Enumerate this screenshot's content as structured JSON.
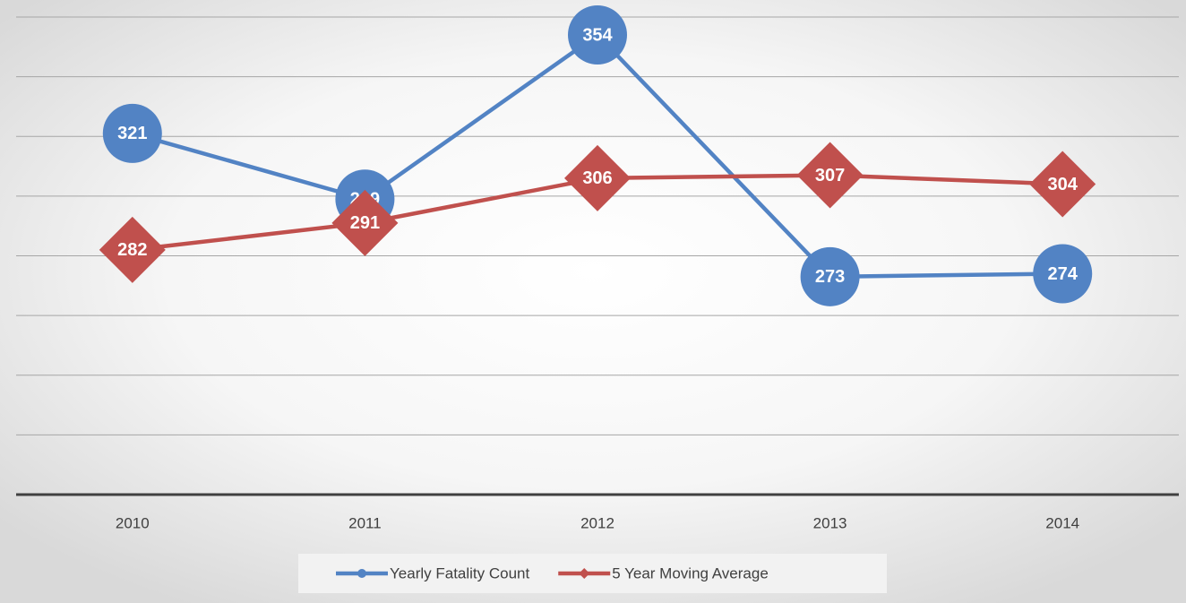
{
  "chart_data": {
    "type": "line",
    "categories": [
      "2010",
      "2011",
      "2012",
      "2013",
      "2014"
    ],
    "series": [
      {
        "name": "Yearly Fatality Count",
        "color": "#5283c4",
        "marker": "circle",
        "values": [
          321,
          299,
          354,
          273,
          274
        ]
      },
      {
        "name": "5 Year Moving Average",
        "color": "#c0504d",
        "marker": "diamond",
        "values": [
          282,
          291,
          306,
          307,
          304
        ]
      }
    ],
    "ylim": [
      200,
      360
    ],
    "yticks": [
      220,
      240,
      260,
      280,
      300,
      320,
      340,
      360
    ],
    "grid": true,
    "legend": "bottom"
  }
}
